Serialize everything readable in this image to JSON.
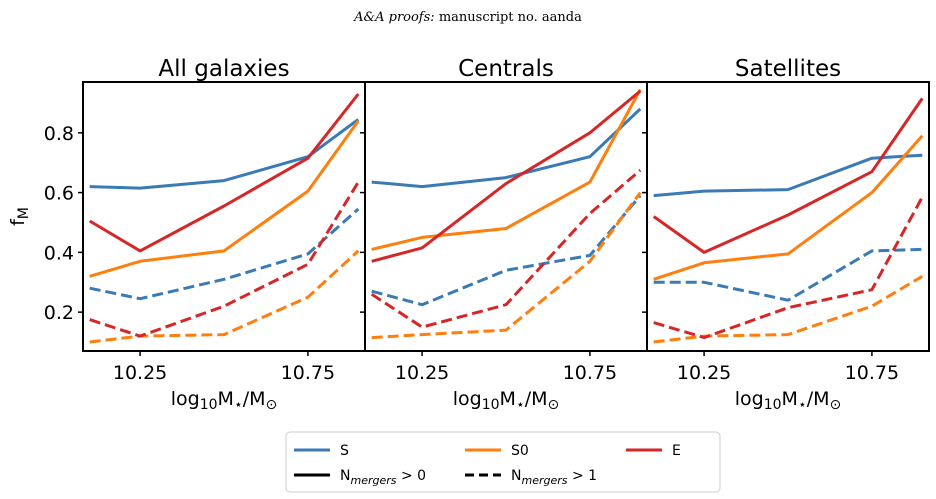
{
  "header": {
    "journal": "A&A proofs:",
    "manuscript": "manuscript no. aanda"
  },
  "colors": {
    "S": "#3a7ab5",
    "S0": "#ff7f0e",
    "E": "#d62728"
  },
  "chart_data": [
    {
      "type": "line",
      "title": "All galaxies",
      "xlabel_parts": [
        "log",
        "10",
        "M",
        "⋆",
        "/M",
        "⊙"
      ],
      "ylabel_parts": [
        "f",
        "M"
      ],
      "xlim": [
        10.08,
        10.92
      ],
      "ylim": [
        0.07,
        0.97
      ],
      "xticks": [
        10.25,
        10.75
      ],
      "xtick_labels": [
        "10.25",
        "10.75"
      ],
      "yticks": [
        0.2,
        0.4,
        0.6,
        0.8
      ],
      "ytick_labels": [
        "0.2",
        "0.4",
        "0.6",
        "0.8"
      ],
      "x": [
        10.1,
        10.25,
        10.5,
        10.75,
        10.9
      ],
      "series": [
        {
          "name": "S",
          "style": "solid",
          "color": "#3a7ab5",
          "values": [
            0.62,
            0.615,
            0.64,
            0.72,
            0.845
          ]
        },
        {
          "name": "S0",
          "style": "solid",
          "color": "#ff7f0e",
          "values": [
            0.32,
            0.37,
            0.405,
            0.605,
            0.84
          ]
        },
        {
          "name": "E",
          "style": "solid",
          "color": "#d62728",
          "values": [
            0.505,
            0.405,
            0.555,
            0.715,
            0.93
          ]
        },
        {
          "name": "S",
          "style": "dashed",
          "color": "#3a7ab5",
          "values": [
            0.28,
            0.245,
            0.31,
            0.395,
            0.545
          ]
        },
        {
          "name": "S0",
          "style": "dashed",
          "color": "#ff7f0e",
          "values": [
            0.1,
            0.12,
            0.125,
            0.25,
            0.405
          ]
        },
        {
          "name": "E",
          "style": "dashed",
          "color": "#d62728",
          "values": [
            0.175,
            0.12,
            0.22,
            0.36,
            0.635
          ]
        }
      ]
    },
    {
      "type": "line",
      "title": "Centrals",
      "xlabel_parts": [
        "log",
        "10",
        "M",
        "⋆",
        "/M",
        "⊙"
      ],
      "xlim": [
        10.08,
        10.92
      ],
      "ylim": [
        0.07,
        0.97
      ],
      "xticks": [
        10.25,
        10.75
      ],
      "xtick_labels": [
        "10.25",
        "10.75"
      ],
      "x": [
        10.1,
        10.25,
        10.5,
        10.75,
        10.9
      ],
      "series": [
        {
          "name": "S",
          "style": "solid",
          "color": "#3a7ab5",
          "values": [
            0.635,
            0.62,
            0.65,
            0.72,
            0.88
          ]
        },
        {
          "name": "S0",
          "style": "solid",
          "color": "#ff7f0e",
          "values": [
            0.41,
            0.45,
            0.48,
            0.635,
            0.945
          ]
        },
        {
          "name": "E",
          "style": "solid",
          "color": "#d62728",
          "values": [
            0.37,
            0.415,
            0.63,
            0.8,
            0.94
          ]
        },
        {
          "name": "S",
          "style": "dashed",
          "color": "#3a7ab5",
          "values": [
            0.27,
            0.225,
            0.34,
            0.39,
            0.59
          ]
        },
        {
          "name": "S0",
          "style": "dashed",
          "color": "#ff7f0e",
          "values": [
            0.115,
            0.125,
            0.14,
            0.37,
            0.6
          ]
        },
        {
          "name": "E",
          "style": "dashed",
          "color": "#d62728",
          "values": [
            0.26,
            0.15,
            0.225,
            0.53,
            0.675
          ]
        }
      ]
    },
    {
      "type": "line",
      "title": "Satellites",
      "xlabel_parts": [
        "log",
        "10",
        "M",
        "⋆",
        "/M",
        "⊙"
      ],
      "xlim": [
        10.08,
        10.92
      ],
      "ylim": [
        0.07,
        0.97
      ],
      "xticks": [
        10.25,
        10.75
      ],
      "xtick_labels": [
        "10.25",
        "10.75"
      ],
      "x": [
        10.1,
        10.25,
        10.5,
        10.75,
        10.9
      ],
      "series": [
        {
          "name": "S",
          "style": "solid",
          "color": "#3a7ab5",
          "values": [
            0.59,
            0.605,
            0.61,
            0.715,
            0.725
          ]
        },
        {
          "name": "S0",
          "style": "solid",
          "color": "#ff7f0e",
          "values": [
            0.31,
            0.365,
            0.395,
            0.6,
            0.79
          ]
        },
        {
          "name": "E",
          "style": "solid",
          "color": "#d62728",
          "values": [
            0.52,
            0.4,
            0.525,
            0.67,
            0.915
          ]
        },
        {
          "name": "S",
          "style": "dashed",
          "color": "#3a7ab5",
          "values": [
            0.3,
            0.3,
            0.24,
            0.405,
            0.41
          ]
        },
        {
          "name": "S0",
          "style": "dashed",
          "color": "#ff7f0e",
          "values": [
            0.1,
            0.12,
            0.125,
            0.22,
            0.32
          ]
        },
        {
          "name": "E",
          "style": "dashed",
          "color": "#d62728",
          "values": [
            0.165,
            0.115,
            0.215,
            0.275,
            0.585
          ]
        }
      ]
    }
  ],
  "legend": {
    "placement": "bottom-center",
    "entries": [
      {
        "label": "S",
        "color": "#3a7ab5",
        "style": "solid"
      },
      {
        "label": "S0",
        "color": "#ff7f0e",
        "style": "solid"
      },
      {
        "label": "E",
        "color": "#d62728",
        "style": "solid"
      },
      {
        "label_parts": [
          "N",
          "mergers",
          " > 0"
        ],
        "color": "#000000",
        "style": "solid"
      },
      {
        "label_parts": [
          "N",
          "mergers",
          " > 1"
        ],
        "color": "#000000",
        "style": "dashed"
      }
    ]
  }
}
